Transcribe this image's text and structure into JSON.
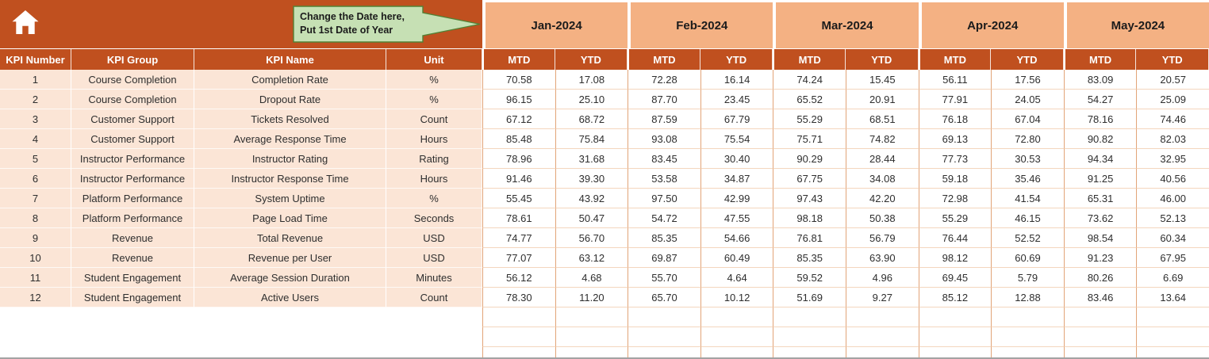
{
  "header": {
    "callout": {
      "line1": "Change the Date here,",
      "line2": "Put 1st Date of Year"
    },
    "months": [
      "Jan-2024",
      "Feb-2024",
      "Mar-2024",
      "Apr-2024",
      "May-2024"
    ]
  },
  "table": {
    "left_headers": [
      "KPI Number",
      "KPI Group",
      "KPI Name",
      "Unit"
    ],
    "sub_headers": [
      "MTD",
      "YTD"
    ],
    "rows": [
      {
        "num": "1",
        "group": "Course Completion",
        "name": "Completion Rate",
        "unit": "%",
        "values": [
          "70.58",
          "17.08",
          "72.28",
          "16.14",
          "74.24",
          "15.45",
          "56.11",
          "17.56",
          "83.09",
          "20.57"
        ]
      },
      {
        "num": "2",
        "group": "Course Completion",
        "name": "Dropout Rate",
        "unit": "%",
        "values": [
          "96.15",
          "25.10",
          "87.70",
          "23.45",
          "65.52",
          "20.91",
          "77.91",
          "24.05",
          "54.27",
          "25.09"
        ]
      },
      {
        "num": "3",
        "group": "Customer Support",
        "name": "Tickets Resolved",
        "unit": "Count",
        "values": [
          "67.12",
          "68.72",
          "87.59",
          "67.79",
          "55.29",
          "68.51",
          "76.18",
          "67.04",
          "78.16",
          "74.46"
        ]
      },
      {
        "num": "4",
        "group": "Customer Support",
        "name": "Average Response Time",
        "unit": "Hours",
        "values": [
          "85.48",
          "75.84",
          "93.08",
          "75.54",
          "75.71",
          "74.82",
          "69.13",
          "72.80",
          "90.82",
          "82.03"
        ]
      },
      {
        "num": "5",
        "group": "Instructor Performance",
        "name": "Instructor Rating",
        "unit": "Rating",
        "values": [
          "78.96",
          "31.68",
          "83.45",
          "30.40",
          "90.29",
          "28.44",
          "77.73",
          "30.53",
          "94.34",
          "32.95"
        ]
      },
      {
        "num": "6",
        "group": "Instructor Performance",
        "name": "Instructor Response Time",
        "unit": "Hours",
        "values": [
          "91.46",
          "39.30",
          "53.58",
          "34.87",
          "67.75",
          "34.08",
          "59.18",
          "35.46",
          "91.25",
          "40.56"
        ]
      },
      {
        "num": "7",
        "group": "Platform Performance",
        "name": "System Uptime",
        "unit": "%",
        "values": [
          "55.45",
          "43.92",
          "97.50",
          "42.99",
          "97.43",
          "42.20",
          "72.98",
          "41.54",
          "65.31",
          "46.00"
        ]
      },
      {
        "num": "8",
        "group": "Platform Performance",
        "name": "Page Load Time",
        "unit": "Seconds",
        "values": [
          "78.61",
          "50.47",
          "54.72",
          "47.55",
          "98.18",
          "50.38",
          "55.29",
          "46.15",
          "73.62",
          "52.13"
        ]
      },
      {
        "num": "9",
        "group": "Revenue",
        "name": "Total Revenue",
        "unit": "USD",
        "values": [
          "74.77",
          "56.70",
          "85.35",
          "54.66",
          "76.81",
          "56.79",
          "76.44",
          "52.52",
          "98.54",
          "60.34"
        ]
      },
      {
        "num": "10",
        "group": "Revenue",
        "name": "Revenue per User",
        "unit": "USD",
        "values": [
          "77.07",
          "63.12",
          "69.87",
          "60.49",
          "85.35",
          "63.90",
          "98.12",
          "60.69",
          "91.23",
          "67.95"
        ]
      },
      {
        "num": "11",
        "group": "Student Engagement",
        "name": "Average Session Duration",
        "unit": "Minutes",
        "values": [
          "56.12",
          "4.68",
          "55.70",
          "4.64",
          "59.52",
          "4.96",
          "69.45",
          "5.79",
          "80.26",
          "6.69"
        ]
      },
      {
        "num": "12",
        "group": "Student Engagement",
        "name": "Active Users",
        "unit": "Count",
        "values": [
          "78.30",
          "11.20",
          "65.70",
          "10.12",
          "51.69",
          "9.27",
          "85.12",
          "12.88",
          "83.46",
          "13.64"
        ]
      }
    ]
  },
  "colors": {
    "header_dark": "#C0501F",
    "month_band": "#F4B183",
    "row_label_bg": "#FBE5D6",
    "callout_fill": "#C6E0B4",
    "callout_border": "#538135"
  }
}
